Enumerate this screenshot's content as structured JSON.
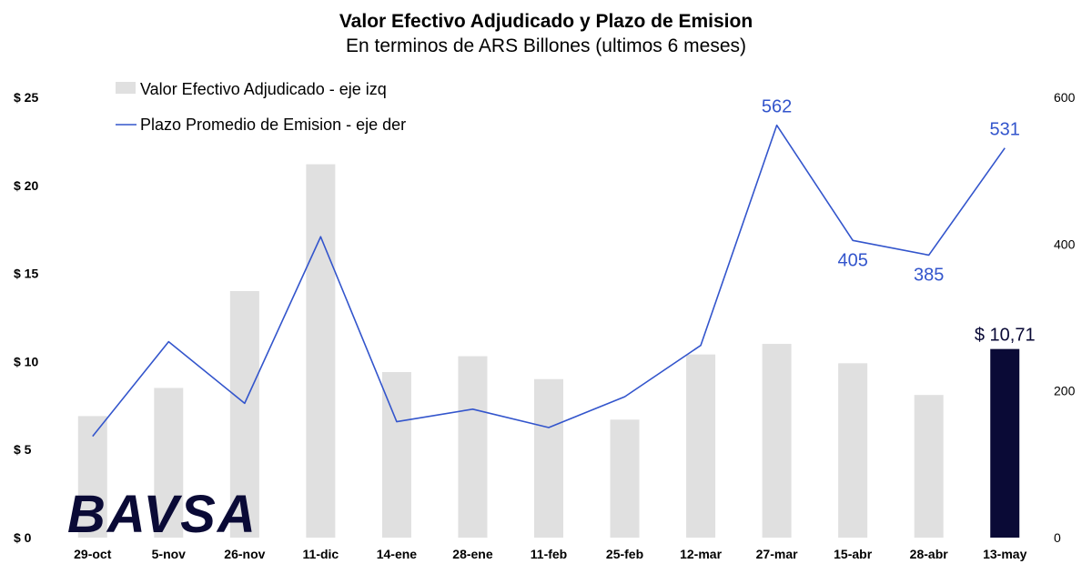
{
  "chart_data": {
    "type": "bar",
    "title": "Valor Efectivo Adjudicado y Plazo de Emision",
    "subtitle": "En terminos de ARS Billones (ultimos 6 meses)",
    "categories": [
      "29-oct",
      "5-nov",
      "26-nov",
      "11-dic",
      "14-ene",
      "28-ene",
      "11-feb",
      "25-feb",
      "12-mar",
      "27-mar",
      "15-abr",
      "28-abr",
      "13-may"
    ],
    "series": [
      {
        "name": "Valor Efectivo Adjudicado - eje izq",
        "type": "bar",
        "axis": "left",
        "values": [
          6.9,
          8.5,
          14.0,
          21.2,
          9.4,
          10.3,
          9.0,
          6.7,
          10.4,
          11.0,
          9.9,
          8.1,
          10.71
        ]
      },
      {
        "name": "Plazo Promedio de Emision - eje der",
        "type": "line",
        "axis": "right",
        "values": [
          138,
          267,
          183,
          410,
          158,
          175,
          150,
          192,
          262,
          562,
          405,
          385,
          531
        ]
      }
    ],
    "highlighted_bar": {
      "category": "13-may",
      "label": "$ 10,71"
    },
    "line_point_labels": [
      {
        "category": "27-mar",
        "label": "562"
      },
      {
        "category": "15-abr",
        "label": "405"
      },
      {
        "category": "28-abr",
        "label": "385"
      },
      {
        "category": "13-may",
        "label": "531"
      }
    ],
    "left_axis": {
      "ylim": [
        0,
        25
      ],
      "ticks": [
        0,
        5,
        10,
        15,
        20,
        25
      ],
      "tick_labels": [
        "$ 0",
        "$ 5",
        "$ 10",
        "$ 15",
        "$ 20",
        "$ 25"
      ]
    },
    "right_axis": {
      "ylim": [
        0,
        600
      ],
      "ticks": [
        0,
        200,
        400,
        600
      ],
      "tick_labels": [
        "0",
        "200",
        "400",
        "600"
      ]
    },
    "legend_position": "top-left",
    "grid": false,
    "colors": {
      "bar": "#e0e0e0",
      "bar_highlight": "#0a0a36",
      "line": "#3355cc"
    }
  },
  "logo": {
    "text": "BAVSA",
    "icon": "bavsa-logo"
  }
}
